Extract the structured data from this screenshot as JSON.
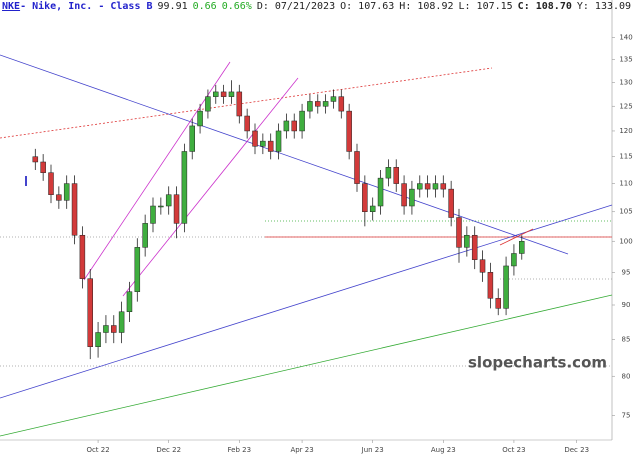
{
  "chart_data": {
    "type": "candlestick",
    "header": {
      "symbol": "NKE",
      "name": "- Nike, Inc. - Class B",
      "last": "99.91",
      "change": "0.66",
      "change_pct": "0.66%",
      "date": "D: 07/21/2023",
      "open": "O: 107.63",
      "high": "H: 108.92",
      "low": "L: 107.15",
      "close": "C: 108.70",
      "year_high": "Y: 133.09"
    },
    "watermark": "slopecharts.com",
    "categories": [
      null,
      null,
      null,
      null,
      null,
      null,
      null,
      null,
      null,
      null,
      null,
      null,
      "Oct 22",
      null,
      null,
      null,
      null,
      null,
      null,
      null,
      null,
      "Dec 22",
      null,
      null,
      null,
      null,
      null,
      null,
      null,
      null,
      "Feb 23",
      null,
      null,
      null,
      null,
      null,
      null,
      null,
      "Apr 23",
      null,
      null,
      null,
      null,
      null,
      null,
      null,
      null,
      "Jun 23",
      null,
      null,
      null,
      null,
      null,
      null,
      null,
      null,
      "Aug 23",
      null,
      null,
      null,
      null,
      null,
      null,
      null,
      null,
      "Oct 23",
      null,
      null,
      null,
      null,
      null,
      null,
      null,
      "Dec 23",
      null,
      null,
      null,
      null
    ],
    "open": [
      null,
      null,
      null,
      null,
      115,
      114,
      112,
      108,
      107,
      110,
      101,
      94,
      84,
      86,
      87,
      86,
      89,
      92,
      99,
      103,
      106,
      106,
      108,
      103,
      116,
      121,
      124,
      127,
      128,
      127,
      128,
      123,
      120,
      117,
      118,
      116,
      120,
      122,
      120,
      124,
      126,
      125,
      126,
      127,
      124,
      116,
      110,
      105,
      106,
      111,
      113,
      110,
      106,
      109,
      110,
      109,
      110,
      109,
      104,
      99,
      101,
      97,
      95,
      91,
      89.5,
      96,
      98,
      null,
      null,
      null,
      null,
      null,
      null,
      null,
      null,
      null,
      null,
      null
    ],
    "high": [
      null,
      null,
      null,
      null,
      116.5,
      115.5,
      113.5,
      109.5,
      111.5,
      111.5,
      102.5,
      95.5,
      87.5,
      88.5,
      88.5,
      90.5,
      93.5,
      100.5,
      104.5,
      107.5,
      107.5,
      109.5,
      109.5,
      117.5,
      122.5,
      125.5,
      128.5,
      129.5,
      129.5,
      130.5,
      129.5,
      124.5,
      121.5,
      119.5,
      119.5,
      121.5,
      123.5,
      123.5,
      125.5,
      127.5,
      127.5,
      127.5,
      128.5,
      128.5,
      125.5,
      117.5,
      111.5,
      107.5,
      112.5,
      114.5,
      114.5,
      111.5,
      110.5,
      111.5,
      111.5,
      111.5,
      111.5,
      110.5,
      105.5,
      102.5,
      102.5,
      98.5,
      96.5,
      92.5,
      97.5,
      99.5,
      101,
      null,
      null,
      null,
      null,
      null,
      null,
      null,
      null,
      null,
      null,
      null
    ],
    "low": [
      null,
      null,
      null,
      null,
      112.5,
      110.5,
      106.5,
      105.5,
      105.5,
      99.5,
      92.5,
      82.3,
      82.5,
      84.5,
      84.5,
      84.5,
      87.5,
      90.5,
      97.5,
      101.5,
      104.5,
      104.5,
      100.5,
      101.5,
      114.5,
      119.5,
      122.5,
      125.5,
      125.5,
      125.5,
      121.5,
      118.5,
      115.5,
      115.5,
      114.5,
      114.5,
      118.5,
      118.5,
      118.5,
      122.5,
      123.5,
      123.5,
      124.5,
      122.5,
      114.5,
      108.5,
      102.5,
      103.5,
      104.5,
      109.5,
      108.5,
      104.5,
      104.5,
      107.5,
      107.5,
      107.5,
      107.5,
      102.5,
      96.5,
      97.5,
      95.5,
      93.5,
      89.5,
      88.5,
      88.5,
      94.5,
      97,
      null,
      null,
      null,
      null,
      null,
      null,
      null,
      null,
      null,
      null,
      null
    ],
    "close": [
      null,
      null,
      null,
      null,
      114,
      112,
      108,
      107,
      110,
      101,
      94,
      84,
      86,
      87,
      86,
      89,
      92,
      99,
      103,
      106,
      106,
      108,
      103,
      116,
      121,
      124,
      127,
      128,
      127,
      128,
      123,
      120,
      117,
      118,
      116,
      120,
      122,
      120,
      124,
      126,
      125,
      126,
      127,
      124,
      116,
      110,
      105,
      106,
      111,
      113,
      110,
      106,
      109,
      110,
      109,
      110,
      109,
      104,
      99,
      101,
      97,
      95,
      91,
      89.5,
      96,
      98,
      100,
      null,
      null,
      null,
      null,
      null,
      null,
      null,
      null,
      null,
      null,
      null
    ],
    "up_color": "#3fae3f",
    "down_color": "#d23a3a",
    "log_scale": true,
    "ylim": [
      72,
      149
    ],
    "yticks": [
      75,
      80,
      85,
      90,
      95,
      100,
      105,
      110,
      115,
      120,
      125,
      130,
      135,
      140
    ]
  }
}
